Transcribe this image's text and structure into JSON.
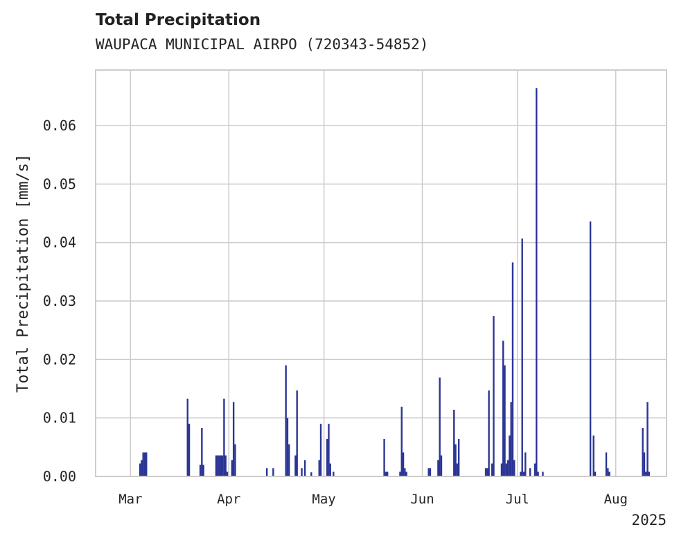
{
  "chart_data": {
    "type": "bar",
    "title": "Total Precipitation",
    "subtitle": "WAUPACA MUNICIPAL AIRPO (720343-54852)",
    "ylabel": "Total Precipitation [mm/s]",
    "xlabel": "",
    "year_label": "2025",
    "x_axis_type": "date",
    "xlim": [
      "2025-02-18",
      "2025-08-17"
    ],
    "ylim": [
      0,
      0.0695
    ],
    "yticks": [
      0.0,
      0.01,
      0.02,
      0.03,
      0.04,
      0.05,
      0.06
    ],
    "ytick_labels": [
      "0.00",
      "0.01",
      "0.02",
      "0.03",
      "0.04",
      "0.05",
      "0.06"
    ],
    "xticks": [
      {
        "date": "2025-03-01",
        "label": "Mar"
      },
      {
        "date": "2025-04-01",
        "label": "Apr"
      },
      {
        "date": "2025-05-01",
        "label": "May"
      },
      {
        "date": "2025-06-01",
        "label": "Jun"
      },
      {
        "date": "2025-07-01",
        "label": "Jul"
      },
      {
        "date": "2025-08-01",
        "label": "Aug"
      }
    ],
    "grid": true,
    "bar_color": "#2b3595",
    "points": [
      {
        "date": "2025-03-04",
        "value": 0.0022
      },
      {
        "date": "2025-03-04T12:00",
        "value": 0.0028
      },
      {
        "date": "2025-03-05",
        "value": 0.0041
      },
      {
        "date": "2025-03-05T12:00",
        "value": 0.0041
      },
      {
        "date": "2025-03-06",
        "value": 0.0041
      },
      {
        "date": "2025-03-19",
        "value": 0.0133
      },
      {
        "date": "2025-03-19T12:00",
        "value": 0.009
      },
      {
        "date": "2025-03-23",
        "value": 0.002
      },
      {
        "date": "2025-03-23T12:00",
        "value": 0.0083
      },
      {
        "date": "2025-03-24",
        "value": 0.002
      },
      {
        "date": "2025-03-28",
        "value": 0.0036
      },
      {
        "date": "2025-03-28T12:00",
        "value": 0.0036
      },
      {
        "date": "2025-03-29",
        "value": 0.0036
      },
      {
        "date": "2025-03-29T12:00",
        "value": 0.0036
      },
      {
        "date": "2025-03-30",
        "value": 0.0036
      },
      {
        "date": "2025-03-30T12:00",
        "value": 0.0133
      },
      {
        "date": "2025-03-31",
        "value": 0.0036
      },
      {
        "date": "2025-03-31T12:00",
        "value": 0.0008
      },
      {
        "date": "2025-04-02",
        "value": 0.0028
      },
      {
        "date": "2025-04-02T12:00",
        "value": 0.0127
      },
      {
        "date": "2025-04-03",
        "value": 0.0055
      },
      {
        "date": "2025-04-13",
        "value": 0.0014
      },
      {
        "date": "2025-04-15",
        "value": 0.0014
      },
      {
        "date": "2025-04-19",
        "value": 0.019
      },
      {
        "date": "2025-04-19T12:00",
        "value": 0.01
      },
      {
        "date": "2025-04-20",
        "value": 0.0055
      },
      {
        "date": "2025-04-22",
        "value": 0.0036
      },
      {
        "date": "2025-04-22T12:00",
        "value": 0.0147
      },
      {
        "date": "2025-04-24",
        "value": 0.0014
      },
      {
        "date": "2025-04-25",
        "value": 0.0028
      },
      {
        "date": "2025-04-27",
        "value": 0.0007
      },
      {
        "date": "2025-04-29T12:00",
        "value": 0.0028
      },
      {
        "date": "2025-04-30",
        "value": 0.009
      },
      {
        "date": "2025-05-02",
        "value": 0.0064
      },
      {
        "date": "2025-05-02T12:00",
        "value": 0.009
      },
      {
        "date": "2025-05-03",
        "value": 0.0022
      },
      {
        "date": "2025-05-04",
        "value": 0.0008
      },
      {
        "date": "2025-05-20",
        "value": 0.0064
      },
      {
        "date": "2025-05-20T12:00",
        "value": 0.0008
      },
      {
        "date": "2025-05-21",
        "value": 0.0008
      },
      {
        "date": "2025-05-25",
        "value": 0.0008
      },
      {
        "date": "2025-05-25T12:00",
        "value": 0.0119
      },
      {
        "date": "2025-05-26",
        "value": 0.0041
      },
      {
        "date": "2025-05-26T12:00",
        "value": 0.0014
      },
      {
        "date": "2025-05-27",
        "value": 0.0008
      },
      {
        "date": "2025-06-03",
        "value": 0.0014
      },
      {
        "date": "2025-06-03T12:00",
        "value": 0.0014
      },
      {
        "date": "2025-06-06",
        "value": 0.0028
      },
      {
        "date": "2025-06-06T12:00",
        "value": 0.0169
      },
      {
        "date": "2025-06-07",
        "value": 0.0036
      },
      {
        "date": "2025-06-11",
        "value": 0.0114
      },
      {
        "date": "2025-06-11T12:00",
        "value": 0.0055
      },
      {
        "date": "2025-06-12",
        "value": 0.0022
      },
      {
        "date": "2025-06-12T12:00",
        "value": 0.0064
      },
      {
        "date": "2025-06-21",
        "value": 0.0014
      },
      {
        "date": "2025-06-21T12:00",
        "value": 0.0014
      },
      {
        "date": "2025-06-22",
        "value": 0.0147
      },
      {
        "date": "2025-06-23",
        "value": 0.0022
      },
      {
        "date": "2025-06-23T12:00",
        "value": 0.0274
      },
      {
        "date": "2025-06-26",
        "value": 0.0022
      },
      {
        "date": "2025-06-26T12:00",
        "value": 0.0232
      },
      {
        "date": "2025-06-27",
        "value": 0.019
      },
      {
        "date": "2025-06-27T12:00",
        "value": 0.0022
      },
      {
        "date": "2025-06-28",
        "value": 0.0028
      },
      {
        "date": "2025-06-28T12:00",
        "value": 0.007
      },
      {
        "date": "2025-06-29",
        "value": 0.0127
      },
      {
        "date": "2025-06-29T12:00",
        "value": 0.0366
      },
      {
        "date": "2025-06-30",
        "value": 0.0028
      },
      {
        "date": "2025-07-02",
        "value": 0.0008
      },
      {
        "date": "2025-07-02T12:00",
        "value": 0.0407
      },
      {
        "date": "2025-07-03",
        "value": 0.0008
      },
      {
        "date": "2025-07-03T12:00",
        "value": 0.0041
      },
      {
        "date": "2025-07-05",
        "value": 0.0014
      },
      {
        "date": "2025-07-06T12:00",
        "value": 0.0022
      },
      {
        "date": "2025-07-07",
        "value": 0.0664
      },
      {
        "date": "2025-07-07T12:00",
        "value": 0.0008
      },
      {
        "date": "2025-07-09",
        "value": 0.0008
      },
      {
        "date": "2025-07-24",
        "value": 0.0436
      },
      {
        "date": "2025-07-25",
        "value": 0.007
      },
      {
        "date": "2025-07-25T12:00",
        "value": 0.0008
      },
      {
        "date": "2025-07-29",
        "value": 0.0041
      },
      {
        "date": "2025-07-29T12:00",
        "value": 0.0014
      },
      {
        "date": "2025-07-30",
        "value": 0.0008
      },
      {
        "date": "2025-08-09T12:00",
        "value": 0.0083
      },
      {
        "date": "2025-08-10",
        "value": 0.0041
      },
      {
        "date": "2025-08-10T12:00",
        "value": 0.0008
      },
      {
        "date": "2025-08-11",
        "value": 0.0127
      },
      {
        "date": "2025-08-11T12:00",
        "value": 0.0008
      }
    ]
  }
}
